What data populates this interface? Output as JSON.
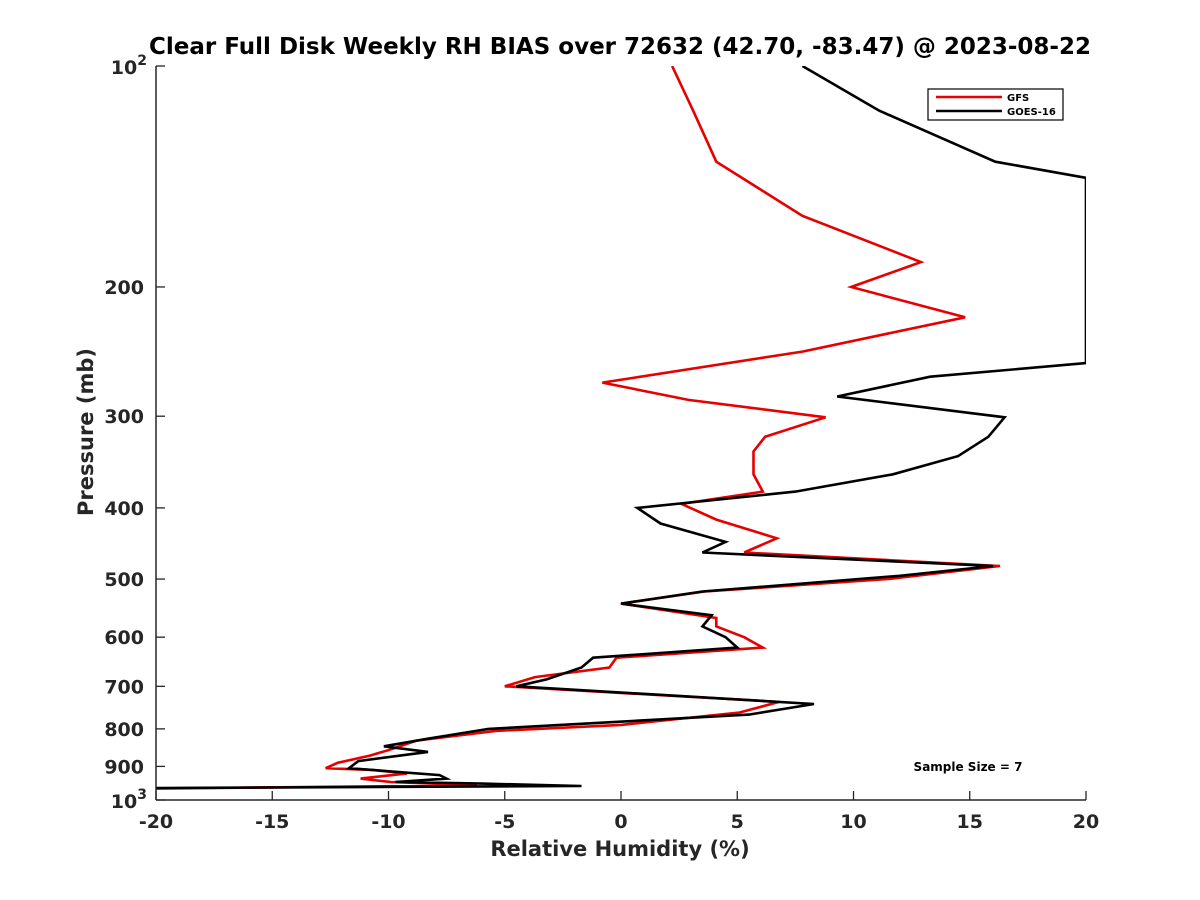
{
  "chart_data": {
    "type": "line",
    "title": "Clear Full Disk Weekly RH BIAS over 72632 (42.70, -83.47) @ 2023-08-22",
    "xlabel": "Relative Humidity (%)",
    "ylabel": "Pressure (mb)",
    "xlim": [
      -20,
      20
    ],
    "ylim": [
      100,
      1000
    ],
    "yscale": "log",
    "y_reversed": true,
    "xticks": [
      "-20",
      "-15",
      "-10",
      "-5",
      "0",
      "5",
      "10",
      "15",
      "20"
    ],
    "yticks": [
      {
        "value": 100,
        "label": "10",
        "exp": "2"
      },
      {
        "value": 200,
        "label": "200"
      },
      {
        "value": 300,
        "label": "300"
      },
      {
        "value": 400,
        "label": "400"
      },
      {
        "value": 500,
        "label": "500"
      },
      {
        "value": 600,
        "label": "600"
      },
      {
        "value": 700,
        "label": "700"
      },
      {
        "value": 800,
        "label": "800"
      },
      {
        "value": 900,
        "label": "900"
      },
      {
        "value": 1000,
        "label": "10",
        "exp": "3"
      }
    ],
    "legend_position": "top-right",
    "grid": false,
    "annotation": "Sample Size = 7",
    "series": [
      {
        "name": "GFS",
        "color": "#e60000",
        "points": [
          [
            2.2,
            100
          ],
          [
            3.1,
            115
          ],
          [
            4.1,
            135
          ],
          [
            7.8,
            160
          ],
          [
            12.9,
            185
          ],
          [
            9.9,
            200
          ],
          [
            14.8,
            220
          ],
          [
            7.8,
            245
          ],
          [
            -0.8,
            270
          ],
          [
            2.9,
            285
          ],
          [
            8.8,
            301
          ],
          [
            6.2,
            320
          ],
          [
            5.7,
            335
          ],
          [
            5.7,
            360
          ],
          [
            6.1,
            380
          ],
          [
            2.6,
            395
          ],
          [
            4.1,
            415
          ],
          [
            6.7,
            440
          ],
          [
            5.3,
            460
          ],
          [
            16.3,
            480
          ],
          [
            11.5,
            500
          ],
          [
            3.6,
            520
          ],
          [
            0.0,
            540
          ],
          [
            4.1,
            565
          ],
          [
            4.1,
            580
          ],
          [
            5.3,
            600
          ],
          [
            6.1,
            620
          ],
          [
            -0.2,
            640
          ],
          [
            -0.5,
            660
          ],
          [
            -3.7,
            680
          ],
          [
            -5.0,
            700
          ],
          [
            6.8,
            735
          ],
          [
            5.1,
            760
          ],
          [
            0.0,
            790
          ],
          [
            -5.4,
            805
          ],
          [
            -8.8,
            830
          ],
          [
            -10.0,
            855
          ],
          [
            -10.8,
            870
          ],
          [
            -12.2,
            890
          ],
          [
            -12.7,
            905
          ],
          [
            -10.7,
            910
          ],
          [
            -9.2,
            920
          ],
          [
            -11.2,
            935
          ],
          [
            -9.9,
            945
          ],
          [
            -6.2,
            955
          ],
          [
            -20.0,
            965
          ]
        ]
      },
      {
        "name": "GOES-16",
        "color": "#000000",
        "points": [
          [
            7.8,
            100
          ],
          [
            11.1,
            115
          ],
          [
            16.1,
            135
          ],
          [
            20.0,
            142
          ],
          [
            20.0,
            254
          ],
          [
            13.3,
            265
          ],
          [
            9.3,
            282
          ],
          [
            16.5,
            301
          ],
          [
            15.8,
            320
          ],
          [
            14.5,
            340
          ],
          [
            11.7,
            360
          ],
          [
            7.5,
            380
          ],
          [
            0.7,
            400
          ],
          [
            1.7,
            420
          ],
          [
            4.5,
            445
          ],
          [
            3.5,
            460
          ],
          [
            16.0,
            480
          ],
          [
            12.0,
            495
          ],
          [
            3.5,
            520
          ],
          [
            0.0,
            540
          ],
          [
            3.9,
            560
          ],
          [
            3.5,
            580
          ],
          [
            4.5,
            600
          ],
          [
            5.0,
            620
          ],
          [
            -1.2,
            640
          ],
          [
            -1.7,
            660
          ],
          [
            -3.2,
            685
          ],
          [
            -4.5,
            700
          ],
          [
            8.3,
            740
          ],
          [
            5.5,
            765
          ],
          [
            -5.7,
            800
          ],
          [
            -8.3,
            825
          ],
          [
            -10.2,
            845
          ],
          [
            -8.3,
            860
          ],
          [
            -11.3,
            885
          ],
          [
            -11.7,
            905
          ],
          [
            -7.8,
            925
          ],
          [
            -7.5,
            935
          ],
          [
            -9.7,
            945
          ],
          [
            -6.0,
            950
          ],
          [
            -1.7,
            957
          ],
          [
            -20.0,
            963
          ]
        ]
      }
    ]
  }
}
